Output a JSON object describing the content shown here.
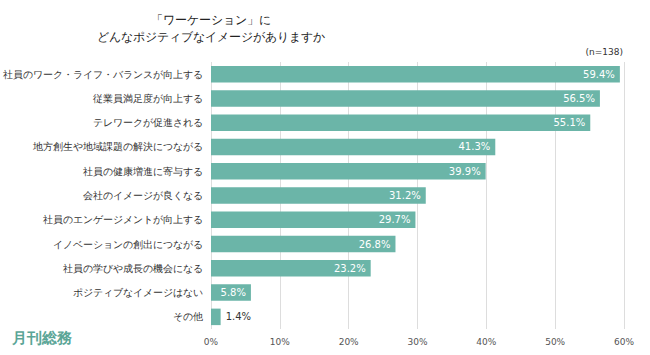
{
  "chart_data": {
    "type": "bar",
    "orientation": "horizontal",
    "title": "「ワーケーション」に\nどんなポジティブなイメージがありますか",
    "subtitle": "(n=138)",
    "annotations": [
      "月刊総務"
    ],
    "categories": [
      "社員のワーク・ライフ・バランスが向上する",
      "従業員満足度が向上する",
      "テレワークが促進される",
      "地方創生や地域課題の解決につながる",
      "社員の健康増進に寄与する",
      "会社のイメージが良くなる",
      "社員のエンゲージメントが向上する",
      "イノベーションの創出につながる",
      "社員の学びや成長の機会になる",
      "ポジティブなイメージはない",
      "その他"
    ],
    "values": [
      59.4,
      56.5,
      55.1,
      41.3,
      39.9,
      31.2,
      29.7,
      26.8,
      23.2,
      5.8,
      1.4
    ],
    "value_labels": [
      "59.4%",
      "56.5%",
      "55.1%",
      "41.3%",
      "39.9%",
      "31.2%",
      "29.7%",
      "26.8%",
      "23.2%",
      "5.8%",
      "1.4%"
    ],
    "color": "#6bb5a8",
    "xlim": [
      0,
      60
    ],
    "xticks": [
      {
        "value": 0,
        "label": "0%"
      },
      {
        "value": 10,
        "label": "10%"
      },
      {
        "value": 20,
        "label": "20%"
      },
      {
        "value": 30,
        "label": "30%"
      },
      {
        "value": 40,
        "label": "40%"
      },
      {
        "value": 50,
        "label": "50%"
      },
      {
        "value": 60,
        "label": "60%"
      }
    ],
    "grid": true,
    "data_labels": true
  }
}
